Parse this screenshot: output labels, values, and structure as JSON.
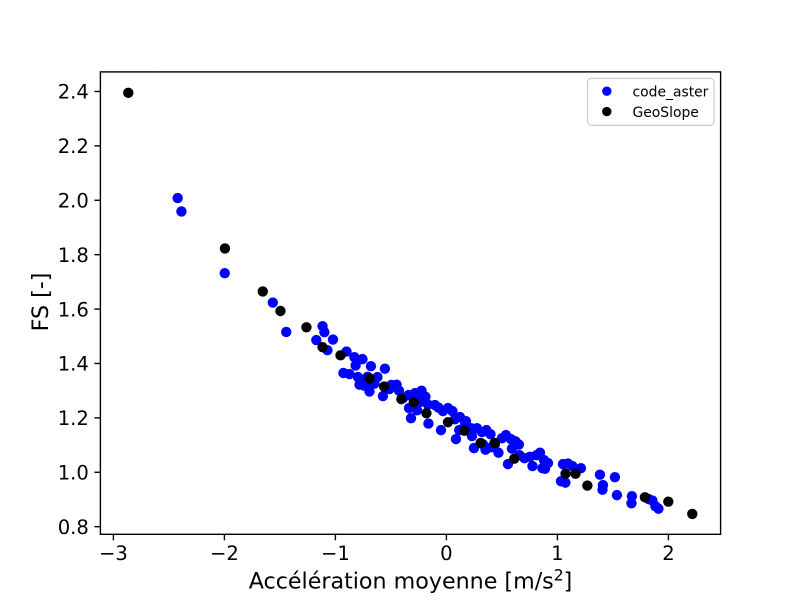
{
  "figure": {
    "background": "#ffffff"
  },
  "chart_data": {
    "type": "scatter",
    "title": "",
    "xlabel": "Accélération moyenne [m/s²]",
    "ylabel": "FS [-]",
    "xlim": [
      -3.117,
      2.47
    ],
    "ylim": [
      0.772,
      2.472
    ],
    "xticks": [
      -3,
      -2,
      -1,
      0,
      1,
      2
    ],
    "yticks": [
      0.8,
      1.0,
      1.2,
      1.4,
      1.6,
      1.8,
      2.0,
      2.2,
      2.4
    ],
    "grid": false,
    "axis_color": "#000000",
    "legend": {
      "position": "upper right",
      "border_color": "#cccccc",
      "background": "#ffffff",
      "entries": [
        {
          "label": "code_aster",
          "color": "#0000ff"
        },
        {
          "label": "GeoSlope",
          "color": "#000000"
        }
      ]
    },
    "series": [
      {
        "name": "code_aster",
        "color": "#0000ff",
        "marker": "circle",
        "points": [
          [
            -2.421,
            2.008
          ],
          [
            -2.387,
            1.959
          ],
          [
            -1.997,
            1.732
          ],
          [
            -1.564,
            1.624
          ],
          [
            -1.443,
            1.516
          ],
          [
            -1.116,
            1.537
          ],
          [
            -1.099,
            1.515
          ],
          [
            -1.172,
            1.486
          ],
          [
            -1.072,
            1.449
          ],
          [
            -1.022,
            1.488
          ],
          [
            -0.829,
            1.423
          ],
          [
            -0.756,
            1.416
          ],
          [
            -0.818,
            1.393
          ],
          [
            -0.68,
            1.39
          ],
          [
            -0.554,
            1.381
          ],
          [
            -0.928,
            1.365
          ],
          [
            -0.873,
            1.361
          ],
          [
            -0.797,
            1.35
          ],
          [
            -0.71,
            1.351
          ],
          [
            -0.621,
            1.35
          ],
          [
            -0.783,
            1.322
          ],
          [
            -0.741,
            1.319
          ],
          [
            -0.648,
            1.326
          ],
          [
            -0.496,
            1.321
          ],
          [
            -0.449,
            1.322
          ],
          [
            -0.693,
            1.297
          ],
          [
            -0.572,
            1.28
          ],
          [
            -0.514,
            1.306
          ],
          [
            -0.391,
            1.273
          ],
          [
            -0.341,
            1.284
          ],
          [
            -0.283,
            1.291
          ],
          [
            -0.243,
            1.273
          ],
          [
            -0.189,
            1.278
          ],
          [
            -0.337,
            1.236
          ],
          [
            -0.265,
            1.228
          ],
          [
            -0.319,
            1.199
          ],
          [
            -0.162,
            1.179
          ],
          [
            -0.224,
            1.3
          ],
          [
            -0.238,
            1.258
          ],
          [
            -0.103,
            1.247
          ],
          [
            -0.072,
            1.238
          ],
          [
            -0.031,
            1.225
          ],
          [
            0.014,
            1.236
          ],
          [
            0.054,
            1.225
          ],
          [
            -0.049,
            1.155
          ],
          [
            0.077,
            1.195
          ],
          [
            0.122,
            1.203
          ],
          [
            0.176,
            1.188
          ],
          [
            0.115,
            1.155
          ],
          [
            0.221,
            1.162
          ],
          [
            0.275,
            1.162
          ],
          [
            0.086,
            1.122
          ],
          [
            0.23,
            1.133
          ],
          [
            0.32,
            1.148
          ],
          [
            0.361,
            1.155
          ],
          [
            0.397,
            1.14
          ],
          [
            0.248,
            1.089
          ],
          [
            0.352,
            1.083
          ],
          [
            0.406,
            1.092
          ],
          [
            0.5,
            1.125
          ],
          [
            0.536,
            1.137
          ],
          [
            0.581,
            1.122
          ],
          [
            0.622,
            1.114
          ],
          [
            0.653,
            1.102
          ],
          [
            0.59,
            1.087
          ],
          [
            0.469,
            1.072
          ],
          [
            0.554,
            1.03
          ],
          [
            0.658,
            1.063
          ],
          [
            0.703,
            1.052
          ],
          [
            0.752,
            1.057
          ],
          [
            0.811,
            1.063
          ],
          [
            0.843,
            1.072
          ],
          [
            0.879,
            1.045
          ],
          [
            0.915,
            1.034
          ],
          [
            0.775,
            1.023
          ],
          [
            0.865,
            1.015
          ],
          [
            0.888,
            1.013
          ],
          [
            1.05,
            1.03
          ],
          [
            1.095,
            1.032
          ],
          [
            1.135,
            1.023
          ],
          [
            1.212,
            1.015
          ],
          [
            1.032,
            0.967
          ],
          [
            1.072,
            0.962
          ],
          [
            1.383,
            0.991
          ],
          [
            1.41,
            0.953
          ],
          [
            1.406,
            0.936
          ],
          [
            1.518,
            0.982
          ],
          [
            1.536,
            0.916
          ],
          [
            1.671,
            0.912
          ],
          [
            1.667,
            0.886
          ],
          [
            1.824,
            0.901
          ],
          [
            1.856,
            0.896
          ],
          [
            1.883,
            0.875
          ],
          [
            1.91,
            0.866
          ],
          [
            -0.9,
            1.444
          ],
          [
            -0.77,
            1.339
          ],
          [
            -0.68,
            1.333
          ],
          [
            -0.427,
            1.3
          ],
          [
            0.329,
            1.103
          ],
          [
            0.437,
            1.103
          ],
          [
            0.167,
            1.177
          ],
          [
            -0.166,
            1.249
          ]
        ]
      },
      {
        "name": "GeoSlope",
        "color": "#000000",
        "marker": "circle",
        "points": [
          [
            -2.866,
            2.395
          ],
          [
            -1.995,
            1.823
          ],
          [
            -1.654,
            1.665
          ],
          [
            -1.495,
            1.593
          ],
          [
            -1.261,
            1.533
          ],
          [
            -1.116,
            1.46
          ],
          [
            -0.954,
            1.43
          ],
          [
            -0.691,
            1.345
          ],
          [
            -0.561,
            1.315
          ],
          [
            -0.406,
            1.269
          ],
          [
            -0.294,
            1.257
          ],
          [
            -0.18,
            1.217
          ],
          [
            0.014,
            1.184
          ],
          [
            0.162,
            1.153
          ],
          [
            0.308,
            1.108
          ],
          [
            0.434,
            1.108
          ],
          [
            0.611,
            1.05
          ],
          [
            1.073,
            0.995
          ],
          [
            1.163,
            0.995
          ],
          [
            1.27,
            0.951
          ],
          [
            1.788,
            0.908
          ],
          [
            1.999,
            0.892
          ],
          [
            2.215,
            0.847
          ]
        ]
      }
    ]
  }
}
